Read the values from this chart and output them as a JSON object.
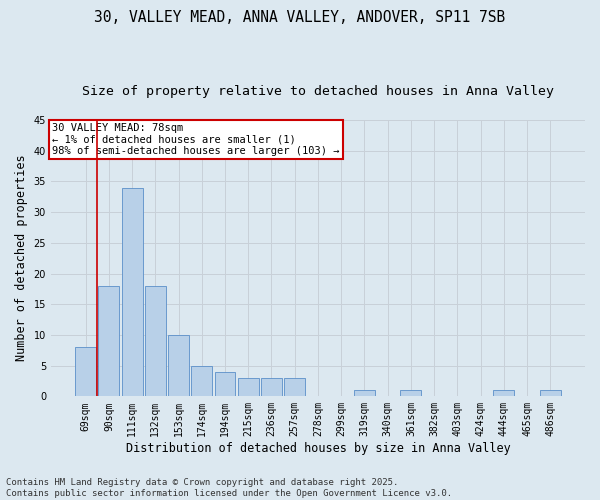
{
  "title_line1": "30, VALLEY MEAD, ANNA VALLEY, ANDOVER, SP11 7SB",
  "title_line2": "Size of property relative to detached houses in Anna Valley",
  "xlabel": "Distribution of detached houses by size in Anna Valley",
  "ylabel": "Number of detached properties",
  "categories": [
    "69sqm",
    "90sqm",
    "111sqm",
    "132sqm",
    "153sqm",
    "174sqm",
    "194sqm",
    "215sqm",
    "236sqm",
    "257sqm",
    "278sqm",
    "299sqm",
    "319sqm",
    "340sqm",
    "361sqm",
    "382sqm",
    "403sqm",
    "424sqm",
    "444sqm",
    "465sqm",
    "486sqm"
  ],
  "values": [
    8,
    18,
    34,
    18,
    10,
    5,
    4,
    3,
    3,
    3,
    0,
    0,
    1,
    0,
    1,
    0,
    0,
    0,
    1,
    0,
    1
  ],
  "bar_color": "#b8d0e8",
  "bar_edge_color": "#5b8fc9",
  "bar_edge_width": 0.6,
  "grid_color": "#c8d0d8",
  "background_color": "#dce8f0",
  "ylim": [
    0,
    45
  ],
  "yticks": [
    0,
    5,
    10,
    15,
    20,
    25,
    30,
    35,
    40,
    45
  ],
  "annotation_box_text": "30 VALLEY MEAD: 78sqm\n← 1% of detached houses are smaller (1)\n98% of semi-detached houses are larger (103) →",
  "annotation_box_color": "#ffffff",
  "annotation_box_edge_color": "#cc0000",
  "vline_color": "#cc0000",
  "footer_line1": "Contains HM Land Registry data © Crown copyright and database right 2025.",
  "footer_line2": "Contains public sector information licensed under the Open Government Licence v3.0.",
  "title_fontsize": 10.5,
  "subtitle_fontsize": 9.5,
  "tick_fontsize": 7,
  "label_fontsize": 8.5,
  "annotation_fontsize": 7.5,
  "footer_fontsize": 6.5
}
